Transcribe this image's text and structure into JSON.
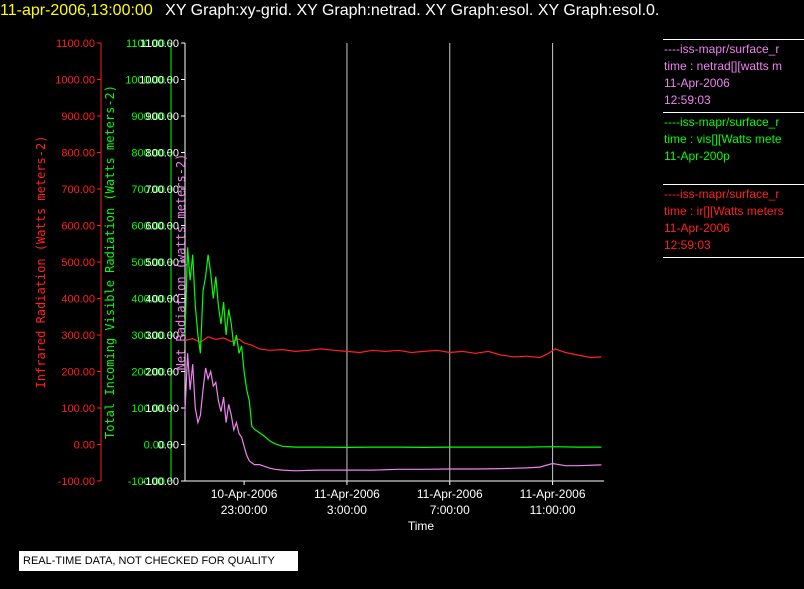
{
  "header": {
    "datetime": "11-apr-2006,13:00:00",
    "graphs": "XY Graph:xy-grid.  XY Graph:netrad.  XY Graph:esol.  XY Graph:esol.0."
  },
  "legend": [
    {
      "lines": [
        "----iss-mapr/surface_r",
        "time : netrad[][watts m",
        "11-Apr-2006",
        "12:59:03"
      ],
      "color": "#ee82ee"
    },
    {
      "lines": [
        "----iss-mapr/surface_r",
        "time : vis[][Watts mete",
        "11-Apr-200p"
      ],
      "color": "#00ff00"
    },
    {
      "lines": [
        "----iss-mapr/surface_r",
        "time : ir[][Watts meters",
        "11-Apr-2006",
        "12:59:03"
      ],
      "color": "#ff2020"
    }
  ],
  "quality_note": "REAL-TIME DATA, NOT CHECKED FOR QUALITY",
  "chart_data": {
    "type": "line",
    "xlabel": "Time",
    "x_ticks": [
      {
        "t": 0,
        "line1": "10-Apr-2006",
        "line2": "23:00:00"
      },
      {
        "t": 4,
        "line1": "11-Apr-2006",
        "line2": "3:00:00"
      },
      {
        "t": 8,
        "line1": "11-Apr-2006",
        "line2": "7:00:00"
      },
      {
        "t": 12,
        "line1": "11-Apr-2006",
        "line2": "11:00:00"
      }
    ],
    "xlim": [
      -2.3,
      14.0
    ],
    "ylim": [
      -100,
      1100
    ],
    "y_ticks": [
      "-100.00",
      "0.00",
      "100.00",
      "200.00",
      "300.00",
      "400.00",
      "500.00",
      "600.00",
      "700.00",
      "800.00",
      "900.00",
      "1000.00",
      "1100.00"
    ],
    "y_tick_values": [
      -100,
      0,
      100,
      200,
      300,
      400,
      500,
      600,
      700,
      800,
      900,
      1000,
      1100
    ],
    "axes": [
      {
        "label": "Infrared Radiation (Watts meters-2)",
        "color": "#ff2020"
      },
      {
        "label": "Total Incoming Visible Radiation (Watts meters-2)",
        "color": "#00ff00"
      },
      {
        "label": "Net Radiation (watts meters-2)",
        "color": "#ee82ee"
      }
    ],
    "series": [
      {
        "name": "ir",
        "color": "#ff2020",
        "x": [
          -2.3,
          -2.0,
          -1.7,
          -1.4,
          -1.1,
          -0.8,
          -0.5,
          -0.2,
          0.0,
          0.3,
          0.6,
          1.0,
          1.5,
          2.0,
          2.5,
          3.0,
          3.5,
          4.0,
          4.5,
          5.0,
          5.5,
          6.0,
          6.5,
          7.0,
          7.5,
          8.0,
          8.5,
          9.0,
          9.5,
          10.0,
          10.5,
          11.0,
          11.5,
          11.8,
          12.1,
          12.5,
          13.0,
          13.5,
          13.9
        ],
        "y": [
          285,
          290,
          280,
          295,
          288,
          292,
          282,
          289,
          278,
          272,
          262,
          258,
          260,
          255,
          258,
          262,
          258,
          255,
          252,
          258,
          255,
          258,
          252,
          255,
          258,
          252,
          255,
          250,
          255,
          245,
          240,
          242,
          238,
          248,
          262,
          252,
          245,
          238,
          240
        ]
      },
      {
        "name": "vis",
        "color": "#00ff00",
        "x": [
          -2.3,
          -2.2,
          -2.1,
          -2.0,
          -1.9,
          -1.8,
          -1.7,
          -1.6,
          -1.5,
          -1.4,
          -1.3,
          -1.2,
          -1.1,
          -1.0,
          -0.9,
          -0.8,
          -0.7,
          -0.6,
          -0.5,
          -0.4,
          -0.3,
          -0.2,
          -0.1,
          0.0,
          0.1,
          0.2,
          0.3,
          0.4,
          0.6,
          0.8,
          1.0,
          1.2,
          1.5,
          2.0,
          2.5,
          3.0,
          4.0,
          5.0,
          6.0,
          7.0,
          8.0,
          9.0,
          10.0,
          11.0,
          12.0,
          13.0,
          13.9
        ],
        "y": [
          300,
          540,
          450,
          520,
          380,
          300,
          250,
          420,
          460,
          520,
          470,
          400,
          460,
          380,
          330,
          390,
          300,
          370,
          330,
          270,
          300,
          250,
          270,
          200,
          150,
          120,
          50,
          42,
          32,
          22,
          10,
          2,
          -5,
          -7,
          -7,
          -7,
          -8,
          -7,
          -7,
          -8,
          -7,
          -7,
          -7,
          -7,
          -6,
          -7,
          -7
        ]
      },
      {
        "name": "netrad",
        "color": "#ee82ee",
        "x": [
          -2.3,
          -2.2,
          -2.1,
          -2.0,
          -1.9,
          -1.8,
          -1.7,
          -1.6,
          -1.5,
          -1.4,
          -1.3,
          -1.2,
          -1.1,
          -1.0,
          -0.9,
          -0.8,
          -0.7,
          -0.6,
          -0.5,
          -0.4,
          -0.3,
          -0.2,
          -0.1,
          0.0,
          0.1,
          0.2,
          0.3,
          0.4,
          0.6,
          0.8,
          1.0,
          1.2,
          1.5,
          2.0,
          2.5,
          3.0,
          4.0,
          5.0,
          6.0,
          7.0,
          8.0,
          9.0,
          10.0,
          11.0,
          11.5,
          12.0,
          12.5,
          13.0,
          13.9
        ],
        "y": [
          90,
          250,
          150,
          220,
          100,
          60,
          80,
          150,
          210,
          180,
          200,
          160,
          170,
          120,
          90,
          130,
          60,
          110,
          80,
          40,
          60,
          30,
          20,
          -5,
          -30,
          -45,
          -50,
          -55,
          -55,
          -60,
          -65,
          -68,
          -70,
          -72,
          -71,
          -70,
          -70,
          -70,
          -68,
          -68,
          -67,
          -67,
          -66,
          -64,
          -62,
          -52,
          -58,
          -58,
          -56
        ]
      }
    ]
  }
}
